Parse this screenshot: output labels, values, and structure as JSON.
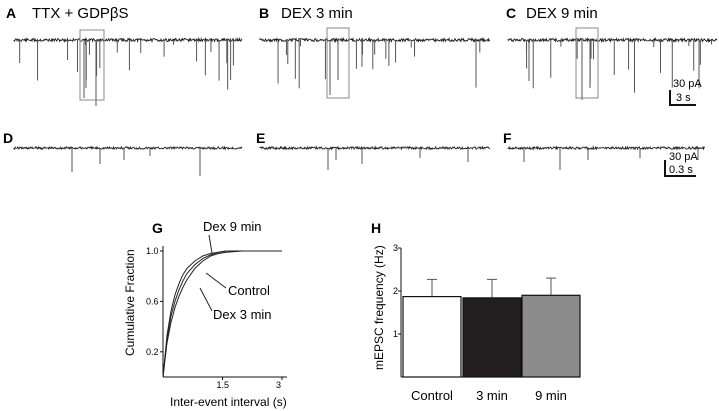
{
  "panels": {
    "A": {
      "letter": "A",
      "title": "TTX + GDPβS"
    },
    "B": {
      "letter": "B",
      "title": "DEX 3 min"
    },
    "C": {
      "letter": "C",
      "title": "DEX 9 min"
    },
    "D": {
      "letter": "D"
    },
    "E": {
      "letter": "E"
    },
    "F": {
      "letter": "F"
    },
    "G": {
      "letter": "G"
    },
    "H": {
      "letter": "H"
    }
  },
  "scale_bars": {
    "top": {
      "amplitude": "30 pA",
      "time": "3 s"
    },
    "bottom": {
      "amplitude": "30 pA",
      "time": "0.3 s"
    }
  },
  "chart_data": [
    {
      "panel": "G",
      "type": "line",
      "xlabel": "Inter-event interval (s)",
      "ylabel": "Cumulative Fraction",
      "xlim": [
        0,
        3.0
      ],
      "ylim": [
        0,
        1.0
      ],
      "xticks": [
        "1.5",
        "3"
      ],
      "yticks": [
        "0.2",
        "0.6",
        "1.0"
      ],
      "series": [
        {
          "name": "Control",
          "x": [
            0,
            0.1,
            0.2,
            0.3,
            0.4,
            0.5,
            0.6,
            0.8,
            1.0,
            1.2,
            1.4,
            1.6,
            2.0,
            2.5,
            3.0
          ],
          "y": [
            0,
            0.3,
            0.48,
            0.6,
            0.69,
            0.76,
            0.82,
            0.89,
            0.94,
            0.97,
            0.99,
            1.0,
            1.0,
            1.0,
            1.0
          ]
        },
        {
          "name": "Dex 3 min",
          "x": [
            0,
            0.1,
            0.2,
            0.3,
            0.4,
            0.5,
            0.6,
            0.8,
            1.0,
            1.2,
            1.4,
            1.6,
            2.0,
            2.5,
            3.0
          ],
          "y": [
            0,
            0.27,
            0.43,
            0.55,
            0.64,
            0.71,
            0.77,
            0.86,
            0.92,
            0.96,
            0.98,
            0.99,
            1.0,
            1.0,
            1.0
          ]
        },
        {
          "name": "Dex 9 min",
          "x": [
            0,
            0.1,
            0.2,
            0.3,
            0.4,
            0.5,
            0.6,
            0.8,
            1.0,
            1.2,
            1.4,
            1.6,
            2.0,
            2.5,
            3.0
          ],
          "y": [
            0,
            0.33,
            0.52,
            0.65,
            0.74,
            0.81,
            0.86,
            0.92,
            0.96,
            0.98,
            0.99,
            1.0,
            1.0,
            1.0,
            1.0
          ]
        }
      ]
    },
    {
      "panel": "H",
      "type": "bar",
      "ylabel": "mEPSC frequency (Hz)",
      "ylim": [
        0,
        3
      ],
      "yticks": [
        "1",
        "2",
        "3"
      ],
      "categories": [
        "Control",
        "3 min",
        "9 min"
      ],
      "values": [
        1.87,
        1.84,
        1.9
      ],
      "errors": [
        0.4,
        0.43,
        0.4
      ],
      "colors": [
        "#ffffff",
        "#231f20",
        "#8c8c8c"
      ]
    }
  ]
}
